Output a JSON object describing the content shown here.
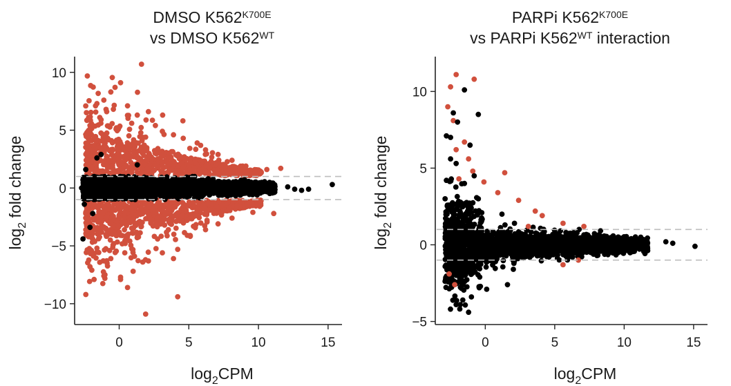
{
  "colors": {
    "significant": "#D1503D",
    "nonsignificant": "#000000",
    "threshold_line": "#BDBDBD",
    "axis": "#222222"
  },
  "chart_data": [
    {
      "type": "scatter",
      "title_line1_main": "DMSO K562",
      "title_line1_sup": "K700E",
      "title_line2_main": "vs DMSO K562",
      "title_line2_sup": "WT",
      "title_line2_tail": "",
      "xlabel_main": "log",
      "xlabel_sub": "2",
      "xlabel_tail": "CPM",
      "ylabel_main": "log",
      "ylabel_sub": "2",
      "ylabel_tail": " fold change",
      "xlim": [
        -3.2,
        16
      ],
      "ylim": [
        -11.8,
        11
      ],
      "xticks": [
        0,
        5,
        10,
        15
      ],
      "xtick_labels": [
        "0",
        "5",
        "10",
        "15"
      ],
      "yticks": [
        -10,
        -5,
        0,
        5,
        10
      ],
      "ytick_labels": [
        "−10",
        "−5",
        "0",
        "5",
        "10"
      ],
      "threshold_lines_y": [
        1,
        -1
      ],
      "series": [
        {
          "color_key": "significant",
          "points": [
            [
              1.6,
              10.7
            ],
            [
              0.1,
              9.1
            ],
            [
              -0.3,
              8.7
            ],
            [
              -0.6,
              8.3
            ],
            [
              -1.1,
              7.6
            ],
            [
              -1.6,
              7.3
            ],
            [
              -0.9,
              6.6
            ],
            [
              0.6,
              7.1
            ],
            [
              1.3,
              6.3
            ],
            [
              2.1,
              6.6
            ],
            [
              -2.2,
              6.1
            ],
            [
              -1.3,
              5.9
            ],
            [
              0.9,
              5.6
            ],
            [
              2.6,
              5.4
            ],
            [
              3.1,
              4.9
            ],
            [
              3.9,
              4.6
            ],
            [
              4.6,
              4.3
            ],
            [
              -0.2,
              5.2
            ],
            [
              -2.1,
              5.4
            ],
            [
              1.9,
              4.4
            ],
            [
              5.6,
              3.9
            ],
            [
              6.2,
              3.3
            ],
            [
              7.1,
              2.9
            ],
            [
              8.1,
              2.4
            ],
            [
              9.1,
              1.9
            ],
            [
              10.6,
              1.6
            ],
            [
              11.6,
              1.7
            ],
            [
              -1.6,
              -5.2
            ],
            [
              -0.6,
              -6.1
            ],
            [
              0.4,
              -5.6
            ],
            [
              1.1,
              -5.9
            ],
            [
              2.1,
              -6.3
            ],
            [
              3.1,
              -5.6
            ],
            [
              3.9,
              -6.1
            ],
            [
              4.2,
              -5.3
            ],
            [
              5.1,
              -4.1
            ],
            [
              6.2,
              -3.6
            ],
            [
              7.1,
              -3.1
            ],
            [
              8.1,
              -2.6
            ],
            [
              9.6,
              -2.1
            ],
            [
              11.1,
              -2.2
            ],
            [
              -2.1,
              -6.8
            ],
            [
              -1.1,
              -7.6
            ],
            [
              0.1,
              -7.9
            ],
            [
              1.0,
              -7.2
            ],
            [
              -1.8,
              -7.9
            ],
            [
              0.6,
              -8.6
            ],
            [
              4.2,
              -9.4
            ],
            [
              1.9,
              -10.9
            ],
            [
              -2.3,
              -3.6
            ],
            [
              -0.5,
              -4.0
            ]
          ]
        },
        {
          "color_key": "nonsignificant",
          "points": [
            [
              -2.7,
              0.0
            ],
            [
              -2.4,
              1.6
            ],
            [
              -2.5,
              -1.4
            ],
            [
              -2.6,
              -4.4
            ],
            [
              -2.1,
              -3.4
            ],
            [
              -1.6,
              2.6
            ],
            [
              -1.3,
              2.9
            ],
            [
              1.3,
              2.0
            ],
            [
              -1.9,
              -2.2
            ],
            [
              12.1,
              0.1
            ],
            [
              12.6,
              -0.1
            ],
            [
              13.1,
              -0.2
            ],
            [
              13.6,
              -0.1
            ],
            [
              15.3,
              0.3
            ]
          ]
        }
      ]
    },
    {
      "type": "scatter",
      "title_line1_main": "PARPi K562",
      "title_line1_sup": "K700E",
      "title_line2_main": "vs PARPi K562",
      "title_line2_sup": "WT",
      "title_line2_tail": " interaction",
      "xlabel_main": "log",
      "xlabel_sub": "2",
      "xlabel_tail": "CPM",
      "ylabel_main": "log",
      "ylabel_sub": "2",
      "ylabel_tail": " fold change",
      "xlim": [
        -3.6,
        16
      ],
      "ylim": [
        -5.2,
        12
      ],
      "xticks": [
        0,
        5,
        10,
        15
      ],
      "xtick_labels": [
        "0",
        "5",
        "10",
        "15"
      ],
      "yticks": [
        -5,
        0,
        5,
        10
      ],
      "ytick_labels": [
        "−5",
        "0",
        "5",
        "10"
      ],
      "threshold_lines_y": [
        1,
        -1
      ],
      "series": [
        {
          "color_key": "significant",
          "points": [
            [
              -2.1,
              11.1
            ],
            [
              -0.8,
              10.8
            ],
            [
              -2.5,
              10.3
            ],
            [
              -2.7,
              9.0
            ],
            [
              -2.3,
              8.1
            ],
            [
              -1.5,
              6.7
            ],
            [
              -2.1,
              6.2
            ],
            [
              -1.2,
              5.6
            ],
            [
              -0.9,
              4.8
            ],
            [
              -0.1,
              4.1
            ],
            [
              1.4,
              4.7
            ],
            [
              -1.9,
              4.3
            ],
            [
              0.9,
              3.4
            ],
            [
              2.4,
              2.9
            ],
            [
              3.6,
              2.2
            ],
            [
              4.1,
              1.9
            ],
            [
              5.6,
              1.4
            ],
            [
              7.1,
              1.2
            ],
            [
              3.1,
              1.2
            ],
            [
              -2.6,
              -1.9
            ],
            [
              -2.2,
              -2.6
            ],
            [
              5.6,
              -1.3
            ],
            [
              6.7,
              -1.0
            ]
          ]
        },
        {
          "color_key": "nonsignificant",
          "points": [
            [
              -1.5,
              10.1
            ],
            [
              -2.3,
              8.6
            ],
            [
              -0.5,
              8.5
            ],
            [
              -2.0,
              8.0
            ],
            [
              -2.8,
              7.1
            ],
            [
              -2.5,
              7.0
            ],
            [
              -1.1,
              6.5
            ],
            [
              -2.5,
              5.6
            ],
            [
              -2.1,
              5.3
            ],
            [
              -0.8,
              4.5
            ],
            [
              -1.5,
              4.0
            ],
            [
              -2.8,
              4.2
            ],
            [
              -0.5,
              3.0
            ],
            [
              -2.0,
              2.5
            ],
            [
              -1.8,
              -3.9
            ],
            [
              -2.1,
              -3.9
            ],
            [
              -1.2,
              -4.4
            ],
            [
              -1.6,
              -2.6
            ],
            [
              -0.4,
              -2.1
            ],
            [
              1.6,
              -2.6
            ],
            [
              0.1,
              -2.9
            ],
            [
              -1.0,
              -3.4
            ],
            [
              1.2,
              2.0
            ],
            [
              2.1,
              1.4
            ],
            [
              11.6,
              -0.1
            ],
            [
              13.0,
              0.2
            ],
            [
              13.5,
              0.1
            ],
            [
              15.1,
              -0.1
            ]
          ]
        }
      ]
    }
  ]
}
